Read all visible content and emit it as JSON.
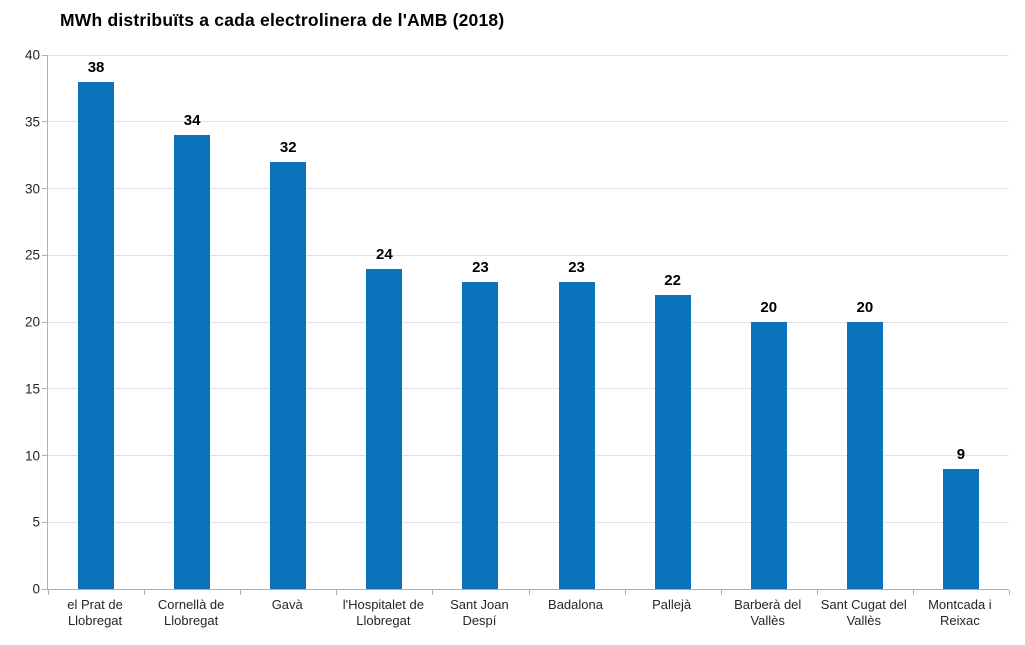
{
  "chart_data": {
    "type": "bar",
    "title": "MWh distribuïts a cada electrolinera de l'AMB (2018)",
    "categories": [
      "el Prat de Llobregat",
      "Cornellà de Llobregat",
      "Gavà",
      "l'Hospitalet de Llobregat",
      "Sant Joan Despí",
      "Badalona",
      "Pallejà",
      "Barberà del Vallès",
      "Sant Cugat del Vallès",
      "Montcada i Reixac"
    ],
    "values": [
      38,
      34,
      32,
      24,
      23,
      23,
      22,
      20,
      20,
      9
    ],
    "xlabel": "",
    "ylabel": "",
    "ylim": [
      0,
      40
    ],
    "ytick_step": 5,
    "grid": true,
    "legend": "none",
    "bar_color": "#0b72bd",
    "gridline_color": "#e2e2e2",
    "axis_color": "#b0b0b0",
    "title_color": "#000000",
    "tick_label_color": "#262626"
  }
}
